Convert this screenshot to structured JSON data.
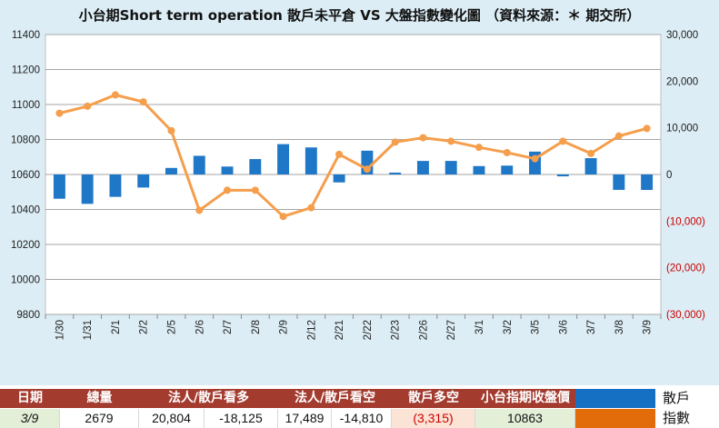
{
  "title": "小台期Short term operation 散戶未平倉 VS 大盤指數變化圖 （資料來源：＊ 期交所）",
  "chart_data": {
    "type": "bar+line",
    "categories": [
      "1/30",
      "1/31",
      "2/1",
      "2/2",
      "2/5",
      "2/6",
      "2/7",
      "2/8",
      "2/9",
      "2/12",
      "2/21",
      "2/22",
      "2/23",
      "2/26",
      "2/27",
      "3/1",
      "3/2",
      "3/5",
      "3/6",
      "3/7",
      "3/8",
      "3/9"
    ],
    "series": [
      {
        "name": "散戶",
        "type": "bar",
        "axis": "right",
        "color": "#1f77c7",
        "values": [
          -5200,
          -6300,
          -4800,
          -2800,
          1400,
          4000,
          1700,
          3300,
          6500,
          5800,
          -1700,
          5100,
          400,
          2900,
          2900,
          1800,
          1900,
          4900,
          -400,
          3500,
          -3300,
          -3315
        ]
      },
      {
        "name": "指數",
        "type": "line",
        "axis": "left",
        "color": "#f59e4c",
        "values": [
          10950,
          10990,
          11055,
          11015,
          10850,
          10395,
          10510,
          10510,
          10360,
          10410,
          10715,
          10630,
          10785,
          10810,
          10790,
          10755,
          10725,
          10690,
          10790,
          10720,
          10820,
          10863
        ]
      }
    ],
    "left_axis": {
      "min": 9800,
      "max": 11400,
      "step": 200,
      "ticks": [
        "9800",
        "10000",
        "10200",
        "10400",
        "10600",
        "10800",
        "11000",
        "11200",
        "11400"
      ]
    },
    "right_axis": {
      "min": -30000,
      "max": 30000,
      "step": 10000,
      "ticks": [
        "(30,000)",
        "(20,000)",
        "(10,000)",
        "0",
        "10,000",
        "20,000",
        "30,000"
      ],
      "negative_color": "#cc0000"
    },
    "legend_placement": "bottom-right"
  },
  "table": {
    "headers": [
      "日期",
      "總量",
      "法人/散戶看多",
      "法人/散戶看空",
      "散戶多空",
      "小台指期收盤價"
    ],
    "row": [
      "3/9",
      "2679",
      "20,804",
      "-18,125",
      "17,489",
      "-14,810",
      "(3,315)",
      "10863"
    ],
    "legend": [
      {
        "label": "散戶",
        "color": "#1570c4"
      },
      {
        "label": "指數",
        "color": "#e36c0a"
      }
    ],
    "colors": {
      "header_bg": "#a33b2f",
      "date_bg": "#e4efd8",
      "net_bg": "#fbe4d5",
      "net_text": "#cc0000",
      "close_bg": "#e4efd8"
    }
  }
}
